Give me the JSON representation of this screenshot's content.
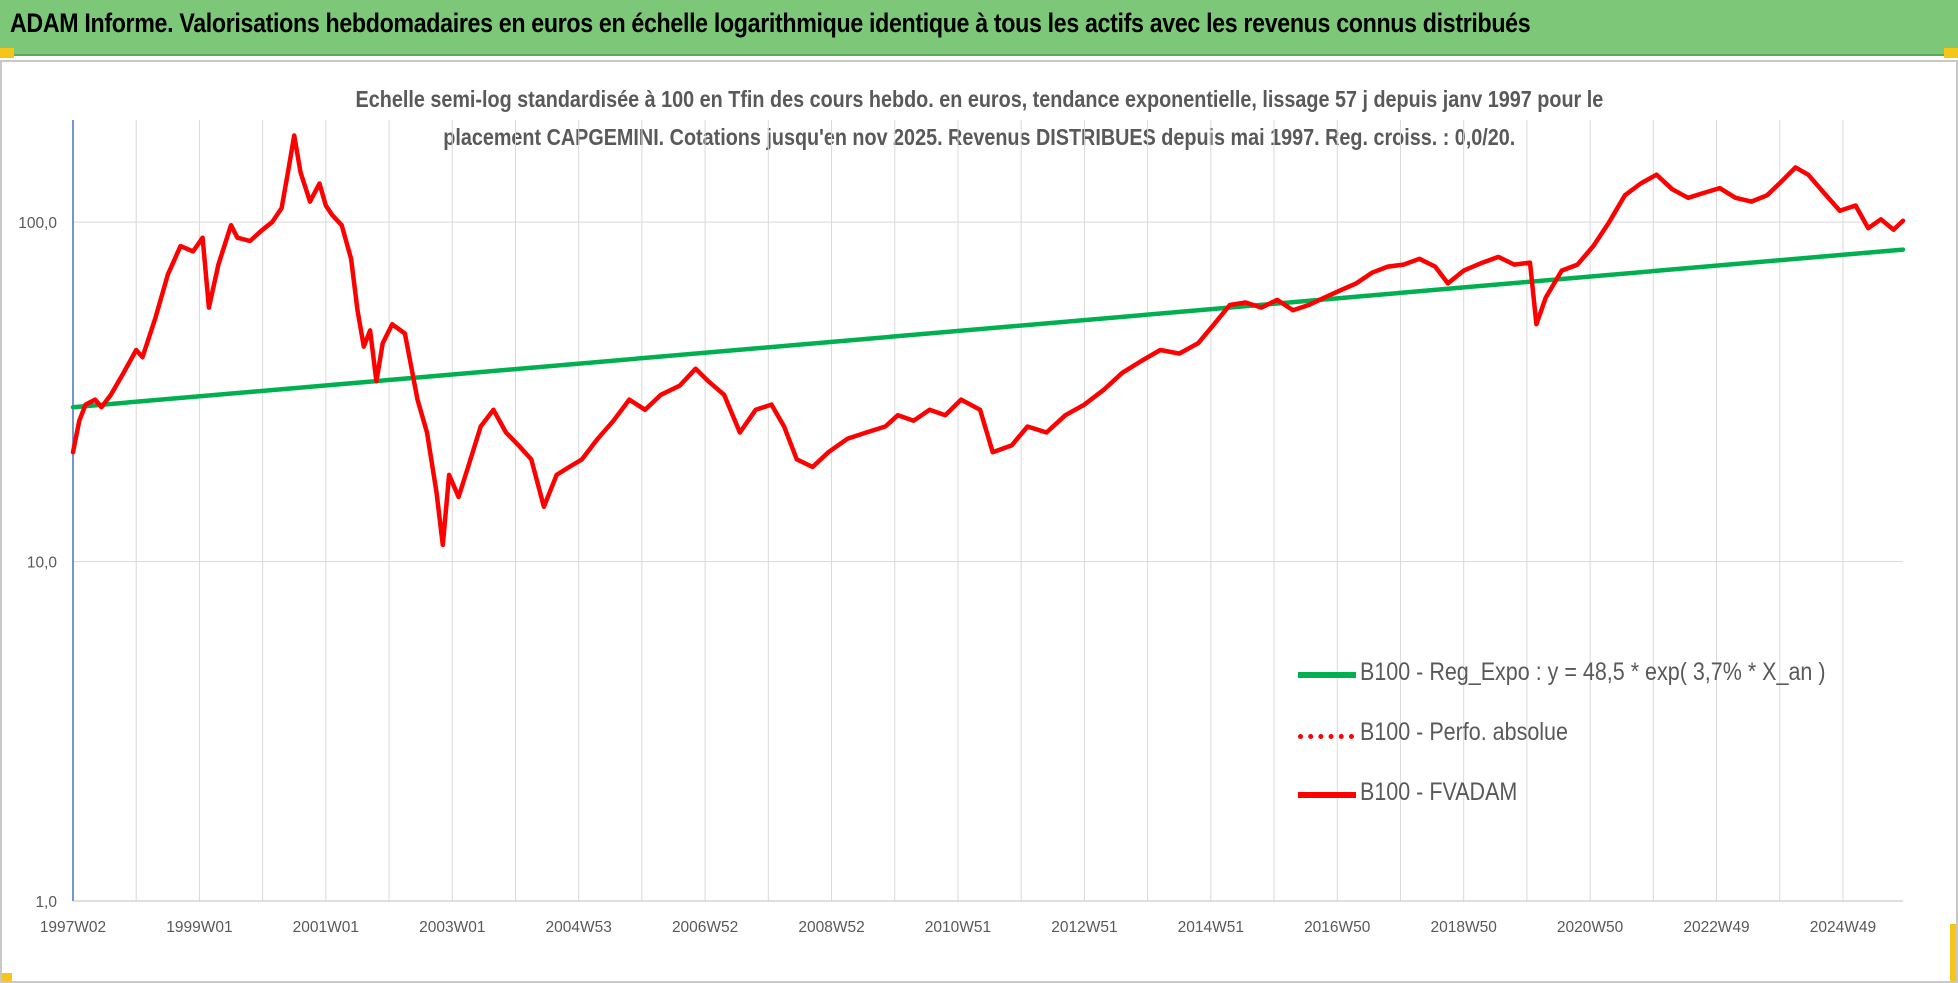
{
  "banner": {
    "title": "ADAM Informe. Valorisations hebdomadaires en euros en échelle logarithmique identique à tous les actifs avec les revenus connus distribués",
    "background": "#7dc878"
  },
  "chart_data": {
    "type": "line",
    "title_line1": "Echelle semi-log standardisée à 100 en Tfin des cours hebdo. en euros, tendance exponentielle, lissage 57 j depuis janv 1997 pour le",
    "title_line2": "placement CAPGEMINI. Cotations jusqu'en nov 2025. Revenus DISTRIBUES depuis mai 1997. Reg. croiss. : 0,0/20.",
    "y_scale": "log",
    "ylim": [
      1,
      200
    ],
    "y_ticks": [
      {
        "value": 1,
        "label": "1,0"
      },
      {
        "value": 10,
        "label": "10,0"
      },
      {
        "value": 100,
        "label": "100,0"
      }
    ],
    "xlim": [
      1997.0,
      2025.95
    ],
    "x_ticks": [
      {
        "value": 1997.0,
        "label": "1997W02"
      },
      {
        "value": 1999.0,
        "label": "1999W01"
      },
      {
        "value": 2001.0,
        "label": "2001W01"
      },
      {
        "value": 2003.0,
        "label": "2003W01"
      },
      {
        "value": 2005.0,
        "label": "2004W53"
      },
      {
        "value": 2007.0,
        "label": "2006W52"
      },
      {
        "value": 2009.0,
        "label": "2008W52"
      },
      {
        "value": 2011.0,
        "label": "2010W51"
      },
      {
        "value": 2013.0,
        "label": "2012W51"
      },
      {
        "value": 2015.0,
        "label": "2014W51"
      },
      {
        "value": 2017.0,
        "label": "2016W50"
      },
      {
        "value": 2019.0,
        "label": "2018W50"
      },
      {
        "value": 2021.0,
        "label": "2020W50"
      },
      {
        "value": 2023.0,
        "label": "2022W49"
      },
      {
        "value": 2025.0,
        "label": "2024W49"
      }
    ],
    "grid": "vertical and horizontal",
    "legend_position": "bottom-right",
    "series": [
      {
        "name": "B100 - Reg_Expo : y = 48,5 * exp( 3,7% *  X_an )",
        "color": "#00b050",
        "style": "solid",
        "points": [
          [
            1997.0,
            28.5
          ],
          [
            2025.95,
            83.0
          ]
        ]
      },
      {
        "name": "B100 - Perfo. absolue",
        "color": "#ff0000",
        "style": "dotted",
        "points": []
      },
      {
        "name": "B100 - FVADAM",
        "color": "#ff0000",
        "style": "solid",
        "points": [
          [
            1997.0,
            21
          ],
          [
            1997.1,
            26
          ],
          [
            1997.2,
            29
          ],
          [
            1997.35,
            30
          ],
          [
            1997.45,
            28.5
          ],
          [
            1997.6,
            31
          ],
          [
            1997.8,
            36
          ],
          [
            1998.0,
            42
          ],
          [
            1998.1,
            40
          ],
          [
            1998.3,
            52
          ],
          [
            1998.5,
            70
          ],
          [
            1998.7,
            85
          ],
          [
            1998.9,
            82
          ],
          [
            1999.05,
            90
          ],
          [
            1999.15,
            56
          ],
          [
            1999.3,
            75
          ],
          [
            1999.5,
            98
          ],
          [
            1999.6,
            90
          ],
          [
            1999.8,
            88
          ],
          [
            2000.0,
            95
          ],
          [
            2000.15,
            100
          ],
          [
            2000.3,
            110
          ],
          [
            2000.4,
            140
          ],
          [
            2000.5,
            180
          ],
          [
            2000.6,
            140
          ],
          [
            2000.75,
            115
          ],
          [
            2000.9,
            130
          ],
          [
            2001.0,
            112
          ],
          [
            2001.1,
            105
          ],
          [
            2001.25,
            98
          ],
          [
            2001.4,
            78
          ],
          [
            2001.5,
            55
          ],
          [
            2001.6,
            43
          ],
          [
            2001.7,
            48
          ],
          [
            2001.8,
            34
          ],
          [
            2001.9,
            44
          ],
          [
            2002.05,
            50
          ],
          [
            2002.25,
            47
          ],
          [
            2002.45,
            30
          ],
          [
            2002.6,
            24
          ],
          [
            2002.75,
            16
          ],
          [
            2002.85,
            11.2
          ],
          [
            2002.95,
            18
          ],
          [
            2003.1,
            15.5
          ],
          [
            2003.25,
            19
          ],
          [
            2003.45,
            25
          ],
          [
            2003.65,
            28
          ],
          [
            2003.85,
            24
          ],
          [
            2004.05,
            22
          ],
          [
            2004.25,
            20
          ],
          [
            2004.45,
            14.5
          ],
          [
            2004.65,
            18
          ],
          [
            2004.85,
            19
          ],
          [
            2005.05,
            20
          ],
          [
            2005.3,
            23
          ],
          [
            2005.55,
            26
          ],
          [
            2005.8,
            30
          ],
          [
            2006.05,
            28
          ],
          [
            2006.3,
            31
          ],
          [
            2006.6,
            33
          ],
          [
            2006.85,
            37
          ],
          [
            2007.05,
            34
          ],
          [
            2007.3,
            31
          ],
          [
            2007.55,
            24
          ],
          [
            2007.8,
            28
          ],
          [
            2008.05,
            29
          ],
          [
            2008.25,
            25
          ],
          [
            2008.45,
            20
          ],
          [
            2008.7,
            19
          ],
          [
            2008.95,
            21
          ],
          [
            2009.25,
            23
          ],
          [
            2009.55,
            24
          ],
          [
            2009.85,
            25
          ],
          [
            2010.05,
            27
          ],
          [
            2010.3,
            26
          ],
          [
            2010.55,
            28
          ],
          [
            2010.8,
            27
          ],
          [
            2011.05,
            30
          ],
          [
            2011.35,
            28
          ],
          [
            2011.55,
            21
          ],
          [
            2011.85,
            22
          ],
          [
            2012.1,
            25
          ],
          [
            2012.4,
            24
          ],
          [
            2012.7,
            27
          ],
          [
            2013.0,
            29
          ],
          [
            2013.3,
            32
          ],
          [
            2013.6,
            36
          ],
          [
            2013.9,
            39
          ],
          [
            2014.2,
            42
          ],
          [
            2014.5,
            41
          ],
          [
            2014.8,
            44
          ],
          [
            2015.05,
            50
          ],
          [
            2015.3,
            57
          ],
          [
            2015.55,
            58
          ],
          [
            2015.8,
            56
          ],
          [
            2016.05,
            59
          ],
          [
            2016.3,
            55
          ],
          [
            2016.55,
            57
          ],
          [
            2016.8,
            60
          ],
          [
            2017.05,
            63
          ],
          [
            2017.3,
            66
          ],
          [
            2017.55,
            71
          ],
          [
            2017.8,
            74
          ],
          [
            2018.05,
            75
          ],
          [
            2018.3,
            78
          ],
          [
            2018.55,
            74
          ],
          [
            2018.75,
            66
          ],
          [
            2019.0,
            72
          ],
          [
            2019.3,
            76
          ],
          [
            2019.55,
            79
          ],
          [
            2019.8,
            75
          ],
          [
            2020.05,
            76
          ],
          [
            2020.15,
            50
          ],
          [
            2020.3,
            60
          ],
          [
            2020.55,
            72
          ],
          [
            2020.8,
            75
          ],
          [
            2021.05,
            85
          ],
          [
            2021.3,
            100
          ],
          [
            2021.55,
            120
          ],
          [
            2021.8,
            130
          ],
          [
            2022.05,
            138
          ],
          [
            2022.3,
            125
          ],
          [
            2022.55,
            118
          ],
          [
            2022.8,
            122
          ],
          [
            2023.05,
            126
          ],
          [
            2023.3,
            118
          ],
          [
            2023.55,
            115
          ],
          [
            2023.8,
            120
          ],
          [
            2024.05,
            133
          ],
          [
            2024.25,
            145
          ],
          [
            2024.45,
            138
          ],
          [
            2024.7,
            122
          ],
          [
            2024.95,
            108
          ],
          [
            2025.2,
            112
          ],
          [
            2025.4,
            96
          ],
          [
            2025.6,
            102
          ],
          [
            2025.8,
            95
          ],
          [
            2025.95,
            101
          ]
        ]
      }
    ]
  }
}
